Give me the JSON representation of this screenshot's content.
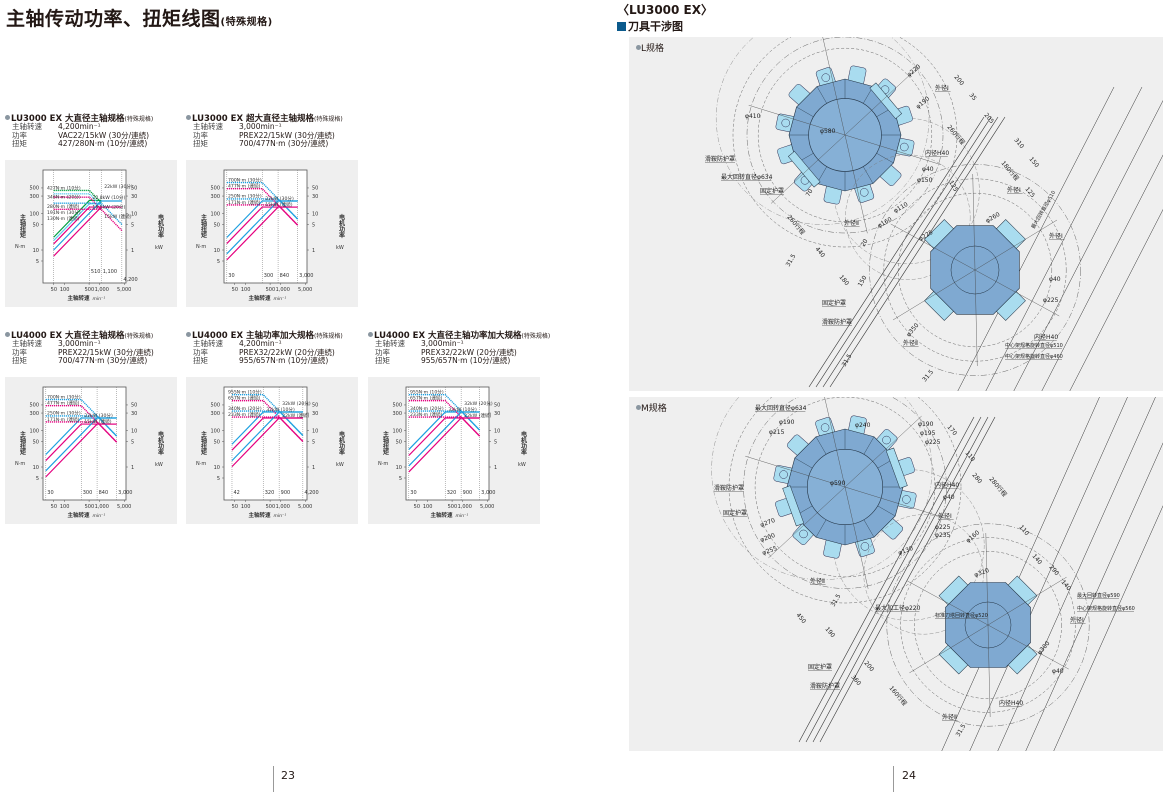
{
  "left_page": {
    "title": "主轴传动功率、扭矩线图",
    "title_tag": "(特殊规格)",
    "page_number": "23"
  },
  "right_page": {
    "model": "〈LU3000 EX〉",
    "section": "刀具干涉图",
    "page_number": "24",
    "l_spec": {
      "label": "L规格",
      "annotations": [
        "滑鞍防护罩",
        "最大回转直径φ634",
        "固定护罩",
        "内径H40",
        "外径Ⅰ",
        "φ580",
        "φ410",
        "φ220",
        "φ190",
        "φ40",
        "φ150",
        "外径Ⅱ",
        "外径Ⅰ",
        "φ110",
        "φ160",
        "φ225",
        "φ260",
        "最大回转直径φ510",
        "外径Ⅰ",
        "φ40",
        "φ225",
        "固定护罩",
        "滑鞍防护罩",
        "外径Ⅱ",
        "内径H40",
        "中心架规格旋转直径φ510",
        "中心架规格旋转直径φ460",
        "200",
        "35",
        "205",
        "310",
        "260行程",
        "150",
        "180行程",
        "125",
        "440",
        "260行程",
        "31.5",
        "180",
        "31.5",
        "φ350",
        "125",
        "70",
        "20",
        "31.5",
        "150"
      ]
    },
    "m_spec": {
      "label": "M规格",
      "annotations": [
        "最大回转直径φ634",
        "φ190",
        "φ215",
        "滑鞍防护罩",
        "固定护罩",
        "φ590",
        "φ240",
        "φ190",
        "φ195",
        "φ225",
        "内径H40",
        "φ40",
        "外径Ⅰ",
        "φ225",
        "φ235",
        "φ160",
        "φ130",
        "外径Ⅱ",
        "最大加工径φ220",
        "标准刀塔回转直径φ520",
        "最大回转直径φ590",
        "中心架规格旋转直径φ560",
        "外径Ⅰ",
        "φ320",
        "φ300",
        "φ40",
        "固定护罩",
        "滑鞍防护罩",
        "内径H40",
        "外径Ⅱ",
        "170",
        "110",
        "280",
        "280行程",
        "110",
        "140",
        "290",
        "140",
        "450",
        "190",
        "200",
        "360",
        "160行程",
        "31.5",
        "31.5",
        "φ270",
        "φ200",
        "φ255"
      ]
    }
  },
  "colors": {
    "cyan": "#1ea0e0",
    "light_cyan": "#5ccbf0",
    "magenta": "#e4007f",
    "green": "#00a040",
    "turret_body": "#7fa9d1",
    "tool_holder": "#a9dcef",
    "panel_bg": "#efefef"
  },
  "spec_labels": {
    "speed": "主轴转速",
    "power": "功率",
    "torque": "扭矩"
  },
  "axis_text": {
    "ylabel": "主轴扭矩",
    "yunit": "N·m",
    "y2label": "电机功率",
    "y2unit": "kW",
    "xlabel": "主轴转速",
    "xunit": "min⁻¹"
  },
  "chart_data": [
    {
      "type": "line",
      "model": "LU3000 EX",
      "title": "大直径主轴规格",
      "tag": "(特殊规格)",
      "specs": {
        "speed": "4,200min⁻¹",
        "power": "VAC22/15kW (30分/連続)",
        "torque": "427/280N·m (10分/連続)"
      },
      "xscale": "log",
      "yscale": "log",
      "xlim": [
        25,
        5500
      ],
      "ylim": [
        1.25,
        1550
      ],
      "y2lim": [
        0.125,
        155
      ],
      "grid": false,
      "xticks": [
        "50",
        "100",
        "500",
        "1,000",
        "5,000"
      ],
      "xtick_values": [
        50,
        100,
        500,
        1000,
        5000
      ],
      "yticks": [
        "500",
        "300",
        "100",
        "50",
        "10",
        "5"
      ],
      "ytick_values": [
        500,
        300,
        100,
        50,
        10,
        5
      ],
      "y2ticks": [
        "50",
        "30",
        "10",
        "5",
        "1"
      ],
      "y2tick_values": [
        50,
        30,
        10,
        5,
        1
      ],
      "speed_marks": [
        {
          "value": 50,
          "label": ""
        },
        {
          "value": 510,
          "label": "510"
        },
        {
          "value": 1100,
          "label": "1,100"
        },
        {
          "value": 4200,
          "label": "4,200"
        }
      ],
      "series": [
        {
          "torque_label": "427N·m (10分)",
          "power_label": "22.8kW (10分)",
          "torque": 427,
          "power": 22.8,
          "min_speed": 50,
          "base_speed": 510,
          "max_speed": 1100,
          "color": "#00a040"
        },
        {
          "torque_label": "346N·m (20分)",
          "power_label": "18.5kW (20分)",
          "torque": 346,
          "power": 18.5,
          "min_speed": 50,
          "base_speed": 510,
          "max_speed": 1100,
          "color": "#5ccbf0"
        },
        {
          "torque_label": "280N·m (連続)",
          "power_label": "",
          "torque": 280,
          "power": 15,
          "min_speed": 50,
          "base_speed": 510,
          "max_speed": 1100,
          "color": "#e4007f"
        },
        {
          "torque_label": "191N·m (30分)",
          "power_label": "22kW (30分)",
          "torque": 191,
          "power": 22,
          "min_speed": 50,
          "base_speed": 1100,
          "max_speed": 4200,
          "color": "#1ea0e0"
        },
        {
          "torque_label": "130N·m (連続)",
          "power_label": "15kW (連続)",
          "torque": 130,
          "power": 15,
          "min_speed": 50,
          "base_speed": 1100,
          "max_speed": 4200,
          "color": "#e4007f"
        }
      ]
    },
    {
      "type": "line",
      "model": "LU3000 EX",
      "title": "超大直径主轴规格",
      "tag": "(特殊规格)",
      "specs": {
        "speed": "3,000min⁻¹",
        "power": "PREX22/15kW (30分/連続)",
        "torque": "700/477N·m (30分/連続)"
      },
      "xscale": "log",
      "yscale": "log",
      "xlim": [
        25,
        5500
      ],
      "ylim": [
        1.25,
        1550
      ],
      "y2lim": [
        0.125,
        155
      ],
      "grid": false,
      "xticks": [
        "50",
        "100",
        "500",
        "1,000",
        "5,000"
      ],
      "xtick_values": [
        50,
        100,
        500,
        1000,
        5000
      ],
      "yticks": [
        "500",
        "300",
        "100",
        "50",
        "10",
        "5"
      ],
      "ytick_values": [
        500,
        300,
        100,
        50,
        10,
        5
      ],
      "y2ticks": [
        "50",
        "30",
        "10",
        "5",
        "1"
      ],
      "y2tick_values": [
        50,
        30,
        10,
        5,
        1
      ],
      "speed_marks": [
        {
          "value": 30,
          "label": "30"
        },
        {
          "value": 300,
          "label": "300"
        },
        {
          "value": 840,
          "label": "840"
        },
        {
          "value": 3000,
          "label": "3,000"
        }
      ],
      "series": [
        {
          "torque_label": "700N·m (30分)",
          "power_label": "22kW (30分)",
          "torque": 700,
          "power": 22,
          "min_speed": 30,
          "base_speed": 300,
          "max_speed": 3000,
          "color": "#1ea0e0"
        },
        {
          "torque_label": "477N·m (連続)",
          "power_label": "15kW (連続)",
          "torque": 477,
          "power": 15,
          "min_speed": 30,
          "base_speed": 300,
          "max_speed": 3000,
          "color": "#e4007f"
        },
        {
          "torque_label": "250N·m (30分)",
          "power_label": "",
          "torque": 250,
          "power": 22,
          "min_speed": 30,
          "base_speed": 840,
          "max_speed": 3000,
          "color": "#1ea0e0"
        },
        {
          "torque_label": "171N·m (連続)",
          "power_label": "",
          "torque": 171,
          "power": 15,
          "min_speed": 30,
          "base_speed": 840,
          "max_speed": 3000,
          "color": "#e4007f"
        }
      ]
    },
    {
      "type": "line",
      "model": "LU4000 EX",
      "title": "大直径主轴规格",
      "tag": "(特殊规格)",
      "specs": {
        "speed": "3,000min⁻¹",
        "power": "PREX22/15kW (30分/連続)",
        "torque": "700/477N·m (30分/連続)"
      },
      "xscale": "log",
      "yscale": "log",
      "xlim": [
        25,
        5500
      ],
      "ylim": [
        1.25,
        1550
      ],
      "y2lim": [
        0.125,
        155
      ],
      "grid": false,
      "xticks": [
        "50",
        "100",
        "500",
        "1,000",
        "5,000"
      ],
      "xtick_values": [
        50,
        100,
        500,
        1000,
        5000
      ],
      "yticks": [
        "500",
        "300",
        "100",
        "50",
        "10",
        "5"
      ],
      "ytick_values": [
        500,
        300,
        100,
        50,
        10,
        5
      ],
      "y2ticks": [
        "50",
        "30",
        "10",
        "5",
        "1"
      ],
      "y2tick_values": [
        50,
        30,
        10,
        5,
        1
      ],
      "speed_marks": [
        {
          "value": 30,
          "label": "30"
        },
        {
          "value": 300,
          "label": "300"
        },
        {
          "value": 840,
          "label": "840"
        },
        {
          "value": 3000,
          "label": "3,000"
        }
      ],
      "series": [
        {
          "torque_label": "700N·m (30分)",
          "power_label": "22kW (30分)",
          "torque": 700,
          "power": 22,
          "min_speed": 30,
          "base_speed": 300,
          "max_speed": 3000,
          "color": "#1ea0e0"
        },
        {
          "torque_label": "477N·m (連続)",
          "power_label": "15kW (連続)",
          "torque": 477,
          "power": 15,
          "min_speed": 30,
          "base_speed": 300,
          "max_speed": 3000,
          "color": "#e4007f"
        },
        {
          "torque_label": "250N·m (30分)",
          "power_label": "",
          "torque": 250,
          "power": 22,
          "min_speed": 30,
          "base_speed": 840,
          "max_speed": 3000,
          "color": "#1ea0e0"
        },
        {
          "torque_label": "171N·m (連続)",
          "power_label": "",
          "torque": 171,
          "power": 15,
          "min_speed": 30,
          "base_speed": 840,
          "max_speed": 3000,
          "color": "#e4007f"
        }
      ]
    },
    {
      "type": "line",
      "model": "LU4000 EX",
      "title": "主轴功率加大规格",
      "tag": "(特殊规格)",
      "specs": {
        "speed": "4,200min⁻¹",
        "power": "PREX32/22kW (20分/連続)",
        "torque": "955/657N·m (10分/連続)"
      },
      "xscale": "log",
      "yscale": "log",
      "xlim": [
        25,
        5500
      ],
      "ylim": [
        1.25,
        1550
      ],
      "y2lim": [
        0.125,
        155
      ],
      "grid": false,
      "xticks": [
        "50",
        "100",
        "500",
        "1,000",
        "5,000"
      ],
      "xtick_values": [
        50,
        100,
        500,
        1000,
        5000
      ],
      "yticks": [
        "500",
        "300",
        "100",
        "50",
        "10",
        "5"
      ],
      "ytick_values": [
        500,
        300,
        100,
        50,
        10,
        5
      ],
      "y2ticks": [
        "50",
        "30",
        "10",
        "5",
        "1"
      ],
      "y2tick_values": [
        50,
        30,
        10,
        5,
        1
      ],
      "speed_marks": [
        {
          "value": 42,
          "label": "42"
        },
        {
          "value": 320,
          "label": "320"
        },
        {
          "value": 900,
          "label": "900"
        },
        {
          "value": 4200,
          "label": "4,200"
        }
      ],
      "series": [
        {
          "torque_label": "955N·m (10分)",
          "power_label": "32kW (10分)",
          "torque": 955,
          "power": 32,
          "min_speed": 42,
          "base_speed": 320,
          "max_speed": 4200,
          "color": "#1ea0e0"
        },
        {
          "torque_label": "657N·m (連続)",
          "power_label": "",
          "torque": 657,
          "power": 22,
          "min_speed": 42,
          "base_speed": 320,
          "max_speed": 4200,
          "color": "#e4007f"
        },
        {
          "torque_label": "340N·m (20分)",
          "power_label": "32kW (20分)",
          "torque": 340,
          "power": 32,
          "min_speed": 42,
          "base_speed": 900,
          "max_speed": 4200,
          "color": "#1ea0e0"
        },
        {
          "torque_label": "233N·m (連続)",
          "power_label": "22kW (連続)",
          "torque": 233,
          "power": 22,
          "min_speed": 42,
          "base_speed": 900,
          "max_speed": 4200,
          "color": "#e4007f"
        }
      ]
    },
    {
      "type": "line",
      "model": "LU4000 EX",
      "title": "大直径主轴功率加大规格",
      "tag": "(特殊规格)",
      "specs": {
        "speed": "3,000min⁻¹",
        "power": "PREX32/22kW (20分/連続)",
        "torque": "955/657N·m (10分/連続)"
      },
      "xscale": "log",
      "yscale": "log",
      "xlim": [
        25,
        5500
      ],
      "ylim": [
        1.25,
        1550
      ],
      "y2lim": [
        0.125,
        155
      ],
      "grid": false,
      "xticks": [
        "50",
        "100",
        "500",
        "1,000",
        "5,000"
      ],
      "xtick_values": [
        50,
        100,
        500,
        1000,
        5000
      ],
      "yticks": [
        "500",
        "300",
        "100",
        "50",
        "10",
        "5"
      ],
      "ytick_values": [
        500,
        300,
        100,
        50,
        10,
        5
      ],
      "y2ticks": [
        "50",
        "30",
        "10",
        "5",
        "1"
      ],
      "y2tick_values": [
        50,
        30,
        10,
        5,
        1
      ],
      "speed_marks": [
        {
          "value": 30,
          "label": "30"
        },
        {
          "value": 320,
          "label": "320"
        },
        {
          "value": 900,
          "label": "900"
        },
        {
          "value": 3000,
          "label": "3,000"
        }
      ],
      "series": [
        {
          "torque_label": "955N·m (10分)",
          "power_label": "32kW (10分)",
          "torque": 955,
          "power": 32,
          "min_speed": 30,
          "base_speed": 320,
          "max_speed": 3000,
          "color": "#1ea0e0"
        },
        {
          "torque_label": "657N·m (連続)",
          "power_label": "",
          "torque": 657,
          "power": 22,
          "min_speed": 30,
          "base_speed": 320,
          "max_speed": 3000,
          "color": "#e4007f"
        },
        {
          "torque_label": "340N·m (20分)",
          "power_label": "32kW (20分)",
          "torque": 340,
          "power": 32,
          "min_speed": 30,
          "base_speed": 900,
          "max_speed": 3000,
          "color": "#1ea0e0"
        },
        {
          "torque_label": "233N·m (連続)",
          "power_label": "22kW (連続)",
          "torque": 233,
          "power": 22,
          "min_speed": 30,
          "base_speed": 900,
          "max_speed": 3000,
          "color": "#e4007f"
        }
      ]
    }
  ]
}
